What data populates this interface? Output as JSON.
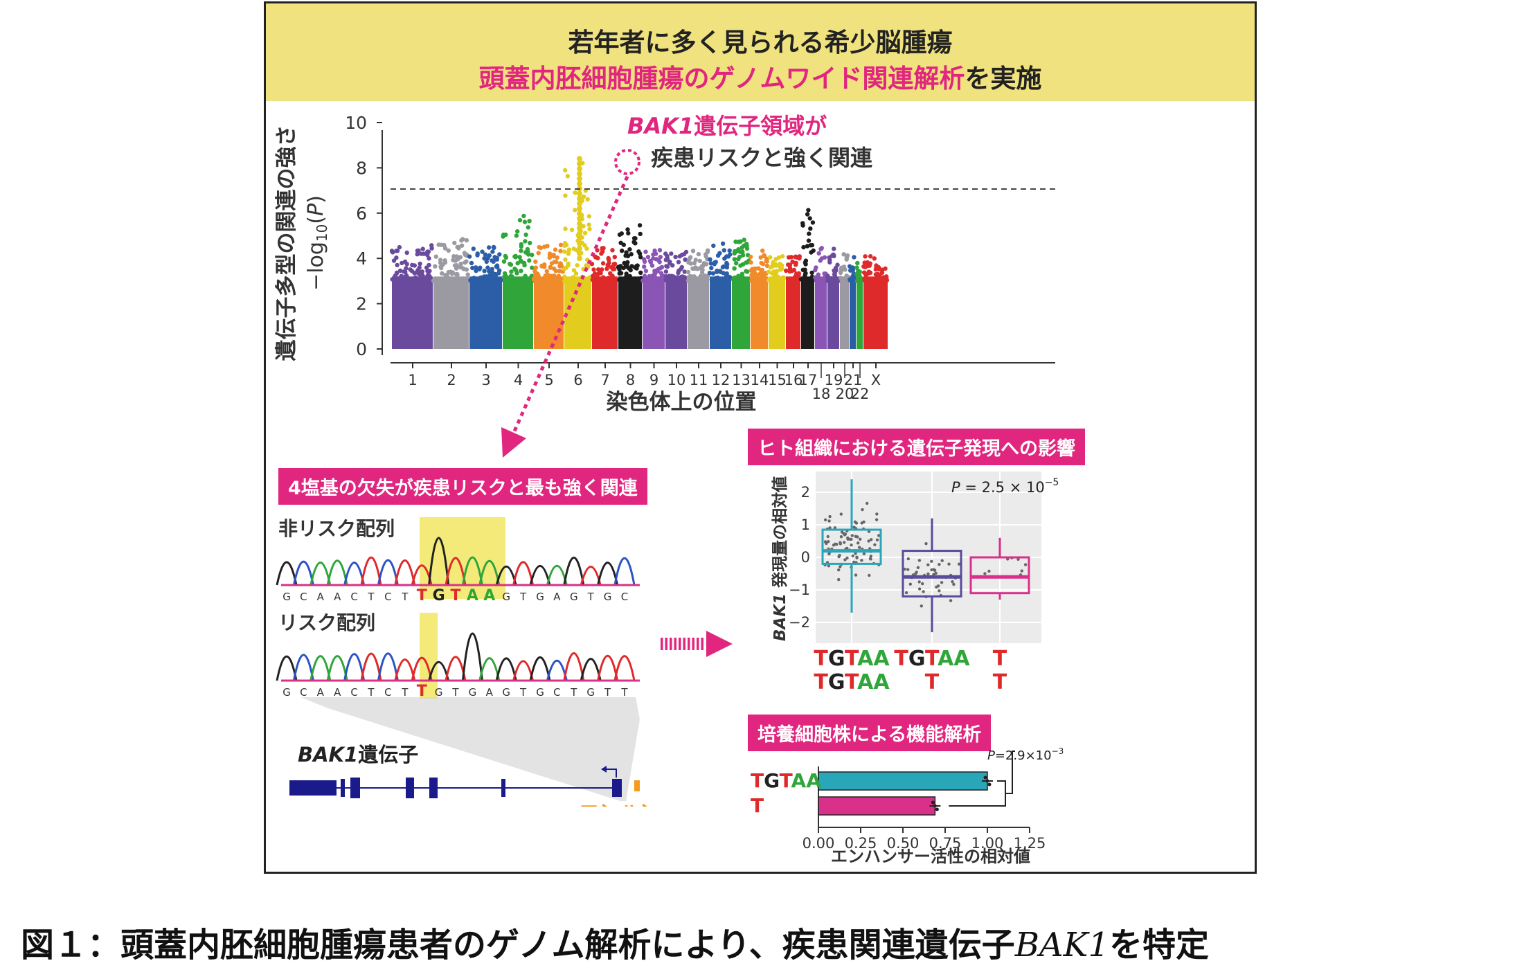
{
  "banner": {
    "line1": "若年者に多く見られる希少脳腫瘍",
    "line2_highlight": "頭蓋内胚細胞腫瘍のゲノムワイド関連解析",
    "line2_rest": "を実施"
  },
  "manhattan": {
    "ylabel_jp": "遺伝子多型の関連の強さ",
    "ylabel_math": "−log10(P)",
    "yticks": [
      "0",
      "2",
      "4",
      "6",
      "8",
      "10"
    ],
    "xlabel": "染色体上の位置",
    "chromosomes_upper": [
      "1",
      "2",
      "3",
      "4",
      "5",
      "6",
      "7",
      "8",
      "9",
      "10",
      "11",
      "12",
      "13",
      "14",
      "15",
      "16",
      "17",
      "19",
      "21",
      "X"
    ],
    "chromosomes_lower": [
      "18",
      "20",
      "22"
    ],
    "annotation_gene": "BAK1",
    "annotation_line1_rest": "遺伝子領域が",
    "annotation_line2": "疾患リスクと強く関連",
    "palette": [
      "#6a4a9c",
      "#9b9aa3",
      "#2c5ea8",
      "#2fa53a",
      "#f08a2a",
      "#e2cd1f",
      "#de2a2a",
      "#1d1d1d",
      "#8a55b5"
    ]
  },
  "deletion": {
    "tag": "4塩基の欠失が疾患リスクと最も強く関連",
    "nonrisk_label": "非リスク配列",
    "nonrisk_seq": [
      "G",
      "C",
      "A",
      "A",
      "C",
      "T",
      "C",
      "T",
      "T",
      "G",
      "T",
      "A",
      "A",
      "G",
      "T",
      "G",
      "A",
      "G",
      "T",
      "G",
      "C"
    ],
    "risk_label": "リスク配列",
    "risk_seq": [
      "G",
      "C",
      "A",
      "A",
      "C",
      "T",
      "C",
      "T",
      "T",
      "G",
      "T",
      "G",
      "A",
      "G",
      "T",
      "G",
      "C",
      "T",
      "G",
      "T",
      "T"
    ],
    "gene_name": "BAK1",
    "gene_suffix": "遺伝子",
    "enhancer_label": "エンハンサー"
  },
  "expression": {
    "tag": "ヒト組織における遺伝子発現への影響",
    "ylabel_gene": "BAK1",
    "ylabel_rest": " 発現量の相対値",
    "pvalue": "P = 2.5 × 10",
    "pvalue_exp": "−5",
    "yticks": [
      "2",
      "1",
      "0",
      "−1",
      "−2"
    ],
    "groups": [
      {
        "top": "TGTAA",
        "bottom": "TGTAA",
        "color": "#2aa6b9"
      },
      {
        "top": "TGTAA",
        "bottom": "T",
        "color": "#5a4a9c"
      },
      {
        "top": "T",
        "bottom": "T",
        "color": "#d9308a"
      }
    ]
  },
  "functional": {
    "tag": "培養細胞株による機能解析",
    "pvalue": "P=2.9×10",
    "pvalue_exp": "−3",
    "xlabel": "エンハンサー活性の相対値",
    "xticks": [
      "0.00",
      "0.25",
      "0.50",
      "0.75",
      "1.00",
      "1.25"
    ]
  },
  "chart_data": [
    {
      "type": "box",
      "ylabel": "BAK1 発現量の相対値",
      "ylim": [
        -2.5,
        2.5
      ],
      "categories": [
        "TGTAA/TGTAA",
        "TGTAA/T",
        "T/T"
      ],
      "boxes": [
        {
          "q1": -0.2,
          "median": 0.2,
          "q3": 0.85,
          "whisker_low": -1.7,
          "whisker_high": 2.4
        },
        {
          "q1": -1.2,
          "median": -0.6,
          "q3": 0.2,
          "whisker_low": -2.3,
          "whisker_high": 1.2
        },
        {
          "q1": -1.1,
          "median": -0.6,
          "q3": 0.0,
          "whisker_low": -1.3,
          "whisker_high": 0.6
        }
      ],
      "annotation": "P = 2.5 × 10−5"
    },
    {
      "type": "bar",
      "orientation": "horizontal",
      "categories": [
        "TGTAA",
        "T"
      ],
      "values": [
        1.0,
        0.69
      ],
      "xlim": [
        0,
        1.25
      ],
      "xlabel": "エンハンサー活性の相対値",
      "annotation": "P=2.9×10−3"
    }
  ],
  "caption": {
    "prefix": "図１：頭蓋内胚細胞腫瘍患者のゲノム解析により、疾患関連遺伝子",
    "gene": "BAK1",
    "suffix": "を特定"
  }
}
